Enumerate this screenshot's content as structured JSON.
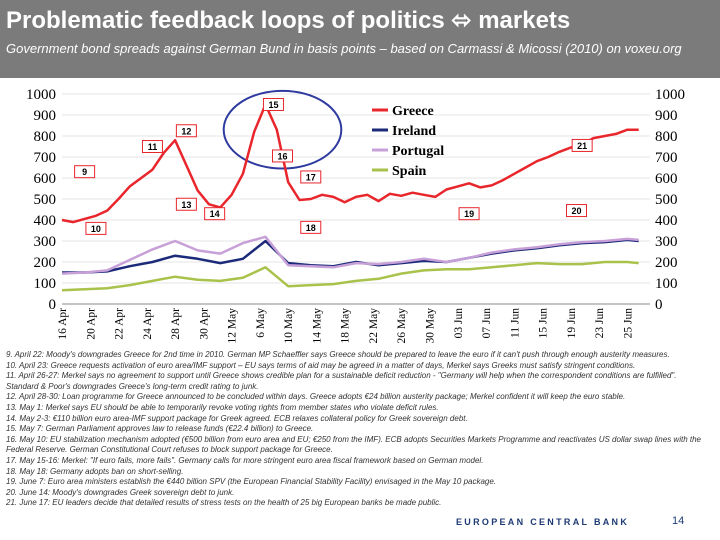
{
  "header": {
    "title": "Problematic feedback loops of politics ⬄ markets",
    "subtitle": "Government bond spreads against German Bund in basis points – based on Carmassi & Micossi (2010) on voxeu.org"
  },
  "chart_data": {
    "type": "line",
    "title": "",
    "xlabel": "",
    "ylabel": "",
    "ylim": [
      0,
      1000
    ],
    "yticks": [
      0,
      100,
      200,
      300,
      400,
      500,
      600,
      700,
      800,
      900,
      1000
    ],
    "x_tick_labels": [
      "16 Apr",
      "20 Apr",
      "22 Apr",
      "24 Apr",
      "28 Apr",
      "30 Apr",
      "12 May",
      "6 May",
      "10 May",
      "14 May",
      "18 May",
      "22 May",
      "26 May",
      "30 May",
      "03 Jun",
      "07 Jun",
      "11 Jun",
      "15 Jun",
      "19 Jun",
      "23 Jun",
      "25 Jun"
    ],
    "x_tick_positions": [
      0,
      2.5,
      5,
      7.5,
      10,
      12.5,
      15,
      17.5,
      20,
      22.5,
      25,
      27.5,
      30,
      32.5,
      35,
      37.5,
      40,
      42.5,
      45,
      47.5,
      50
    ],
    "x_range": [
      0,
      52
    ],
    "legend_position": "top-right",
    "series": [
      {
        "name": "Greece",
        "color": "#e8262c",
        "x": [
          0,
          1,
          2,
          3,
          4,
          5,
          6,
          7,
          8,
          9,
          10,
          11,
          12,
          13,
          14,
          15,
          16,
          17,
          18,
          19,
          20,
          21,
          22,
          23,
          24,
          25,
          26,
          27,
          28,
          29,
          30,
          31,
          32,
          33,
          34,
          35,
          36,
          37,
          38,
          39,
          40,
          41,
          42,
          43,
          44,
          45,
          46,
          47,
          48,
          49,
          50,
          51
        ],
        "values": [
          400,
          390,
          405,
          420,
          445,
          500,
          560,
          600,
          640,
          720,
          780,
          660,
          540,
          475,
          460,
          520,
          620,
          820,
          950,
          830,
          580,
          495,
          500,
          520,
          510,
          485,
          510,
          520,
          490,
          525,
          515,
          530,
          520,
          510,
          545,
          560,
          575,
          555,
          565,
          590,
          620,
          650,
          680,
          700,
          725,
          745,
          760,
          790,
          800,
          810,
          830,
          830
        ]
      },
      {
        "name": "Ireland",
        "color": "#1c2a7a",
        "x": [
          0,
          2,
          4,
          6,
          8,
          10,
          12,
          14,
          16,
          18,
          20,
          22,
          24,
          26,
          28,
          30,
          32,
          34,
          36,
          38,
          40,
          42,
          44,
          46,
          48,
          50,
          51
        ],
        "values": [
          150,
          150,
          155,
          180,
          200,
          230,
          215,
          195,
          215,
          300,
          195,
          185,
          180,
          200,
          185,
          195,
          205,
          200,
          220,
          240,
          255,
          265,
          280,
          290,
          295,
          305,
          300
        ]
      },
      {
        "name": "Portugal",
        "color": "#c7a0d8",
        "x": [
          0,
          2,
          4,
          6,
          8,
          10,
          12,
          14,
          16,
          18,
          20,
          22,
          24,
          26,
          28,
          30,
          32,
          34,
          36,
          38,
          40,
          42,
          44,
          46,
          48,
          50,
          51
        ],
        "values": [
          145,
          150,
          160,
          210,
          260,
          300,
          255,
          240,
          290,
          320,
          185,
          180,
          175,
          195,
          190,
          200,
          215,
          200,
          220,
          245,
          260,
          270,
          285,
          295,
          300,
          310,
          305
        ]
      },
      {
        "name": "Spain",
        "color": "#a9c24b",
        "x": [
          0,
          2,
          4,
          6,
          8,
          10,
          12,
          14,
          16,
          18,
          20,
          22,
          24,
          26,
          28,
          30,
          32,
          34,
          36,
          38,
          40,
          42,
          44,
          46,
          48,
          50,
          51
        ],
        "values": [
          65,
          70,
          75,
          90,
          110,
          130,
          115,
          110,
          125,
          175,
          85,
          90,
          95,
          110,
          120,
          145,
          160,
          165,
          165,
          175,
          185,
          195,
          190,
          190,
          200,
          200,
          195
        ]
      }
    ],
    "annotations": [
      {
        "label": "9",
        "x": 2,
        "y": 630
      },
      {
        "label": "10",
        "x": 3,
        "y": 360
      },
      {
        "label": "11",
        "x": 8,
        "y": 750
      },
      {
        "label": "12",
        "x": 11,
        "y": 825
      },
      {
        "label": "13",
        "x": 11,
        "y": 475
      },
      {
        "label": "14",
        "x": 13.5,
        "y": 430
      },
      {
        "label": "15",
        "x": 18.7,
        "y": 950
      },
      {
        "label": "16",
        "x": 19.5,
        "y": 705
      },
      {
        "label": "17",
        "x": 22,
        "y": 605
      },
      {
        "label": "18",
        "x": 22,
        "y": 365
      },
      {
        "label": "19",
        "x": 36,
        "y": 430
      },
      {
        "label": "20",
        "x": 45.5,
        "y": 445
      },
      {
        "label": "21",
        "x": 46,
        "y": 755
      }
    ],
    "highlight_ellipse": {
      "cx": 19.5,
      "cy": 830,
      "rx": 5.2,
      "ry": 185
    }
  },
  "notes": [
    "9. April 22: Moody's downgrades Greece for 2nd time in 2010. German MP Schaeffler says Greece should be prepared to leave the euro if it can't push through enough austerity measures.",
    "10. April 23: Greece requests activation of euro area/IMF support – EU says terms of aid may be agreed in a matter of days, Merkel says Greeks must satisfy stringent conditions.",
    "11. April 26-27: Merkel says no agreement to support until Greece shows credible plan for a sustainable deficit reduction - \"Germany will help when the correspondent conditions are fulfilled\". Standard & Poor's downgrades Greece's long-term credit rating to junk.",
    "12. April 28-30: Loan programme for Greece announced to be concluded within days. Greece adopts €24 billion austerity package; Merkel confident it will keep the euro stable.",
    "13. May 1: Merkel says EU should be able to temporarily revoke voting rights from member states who violate deficit rules.",
    "14. May 2-3: €110 billion euro area-IMF support package for Greek agreed. ECB relaxes collateral policy for Greek sovereign debt.",
    "15. May 7: German Parliament approves law to release funds (€22.4 billion) to Greece.",
    "16. May 10: EU stabilization mechanism adopted (€500 billion from euro area and EU; €250 from the IMF). ECB adopts Securities Markets Programme and reactivates US dollar swap lines with the Federal Reserve. German Constitutional Court refuses to block support package for Greece.",
    "17. May 15-16: Merkel: \"If euro fails, more fails\". Germany calls for more stringent euro area fiscal framework based on German model.",
    "18. May 18: Germany adopts ban on short-selling.",
    "19. June 7: Euro area ministers establish the €440 billion SPV (the European Financial Stability Facility) envisaged in the May 10 package.",
    "20. June 14: Moody's downgrades Greek sovereign debt to junk.",
    "21. June 17: EU leaders decide that detailed results of stress tests on the health of 25 big European banks be made public."
  ],
  "footer": {
    "brand": "EUROPEAN CENTRAL BANK",
    "page": "14"
  }
}
